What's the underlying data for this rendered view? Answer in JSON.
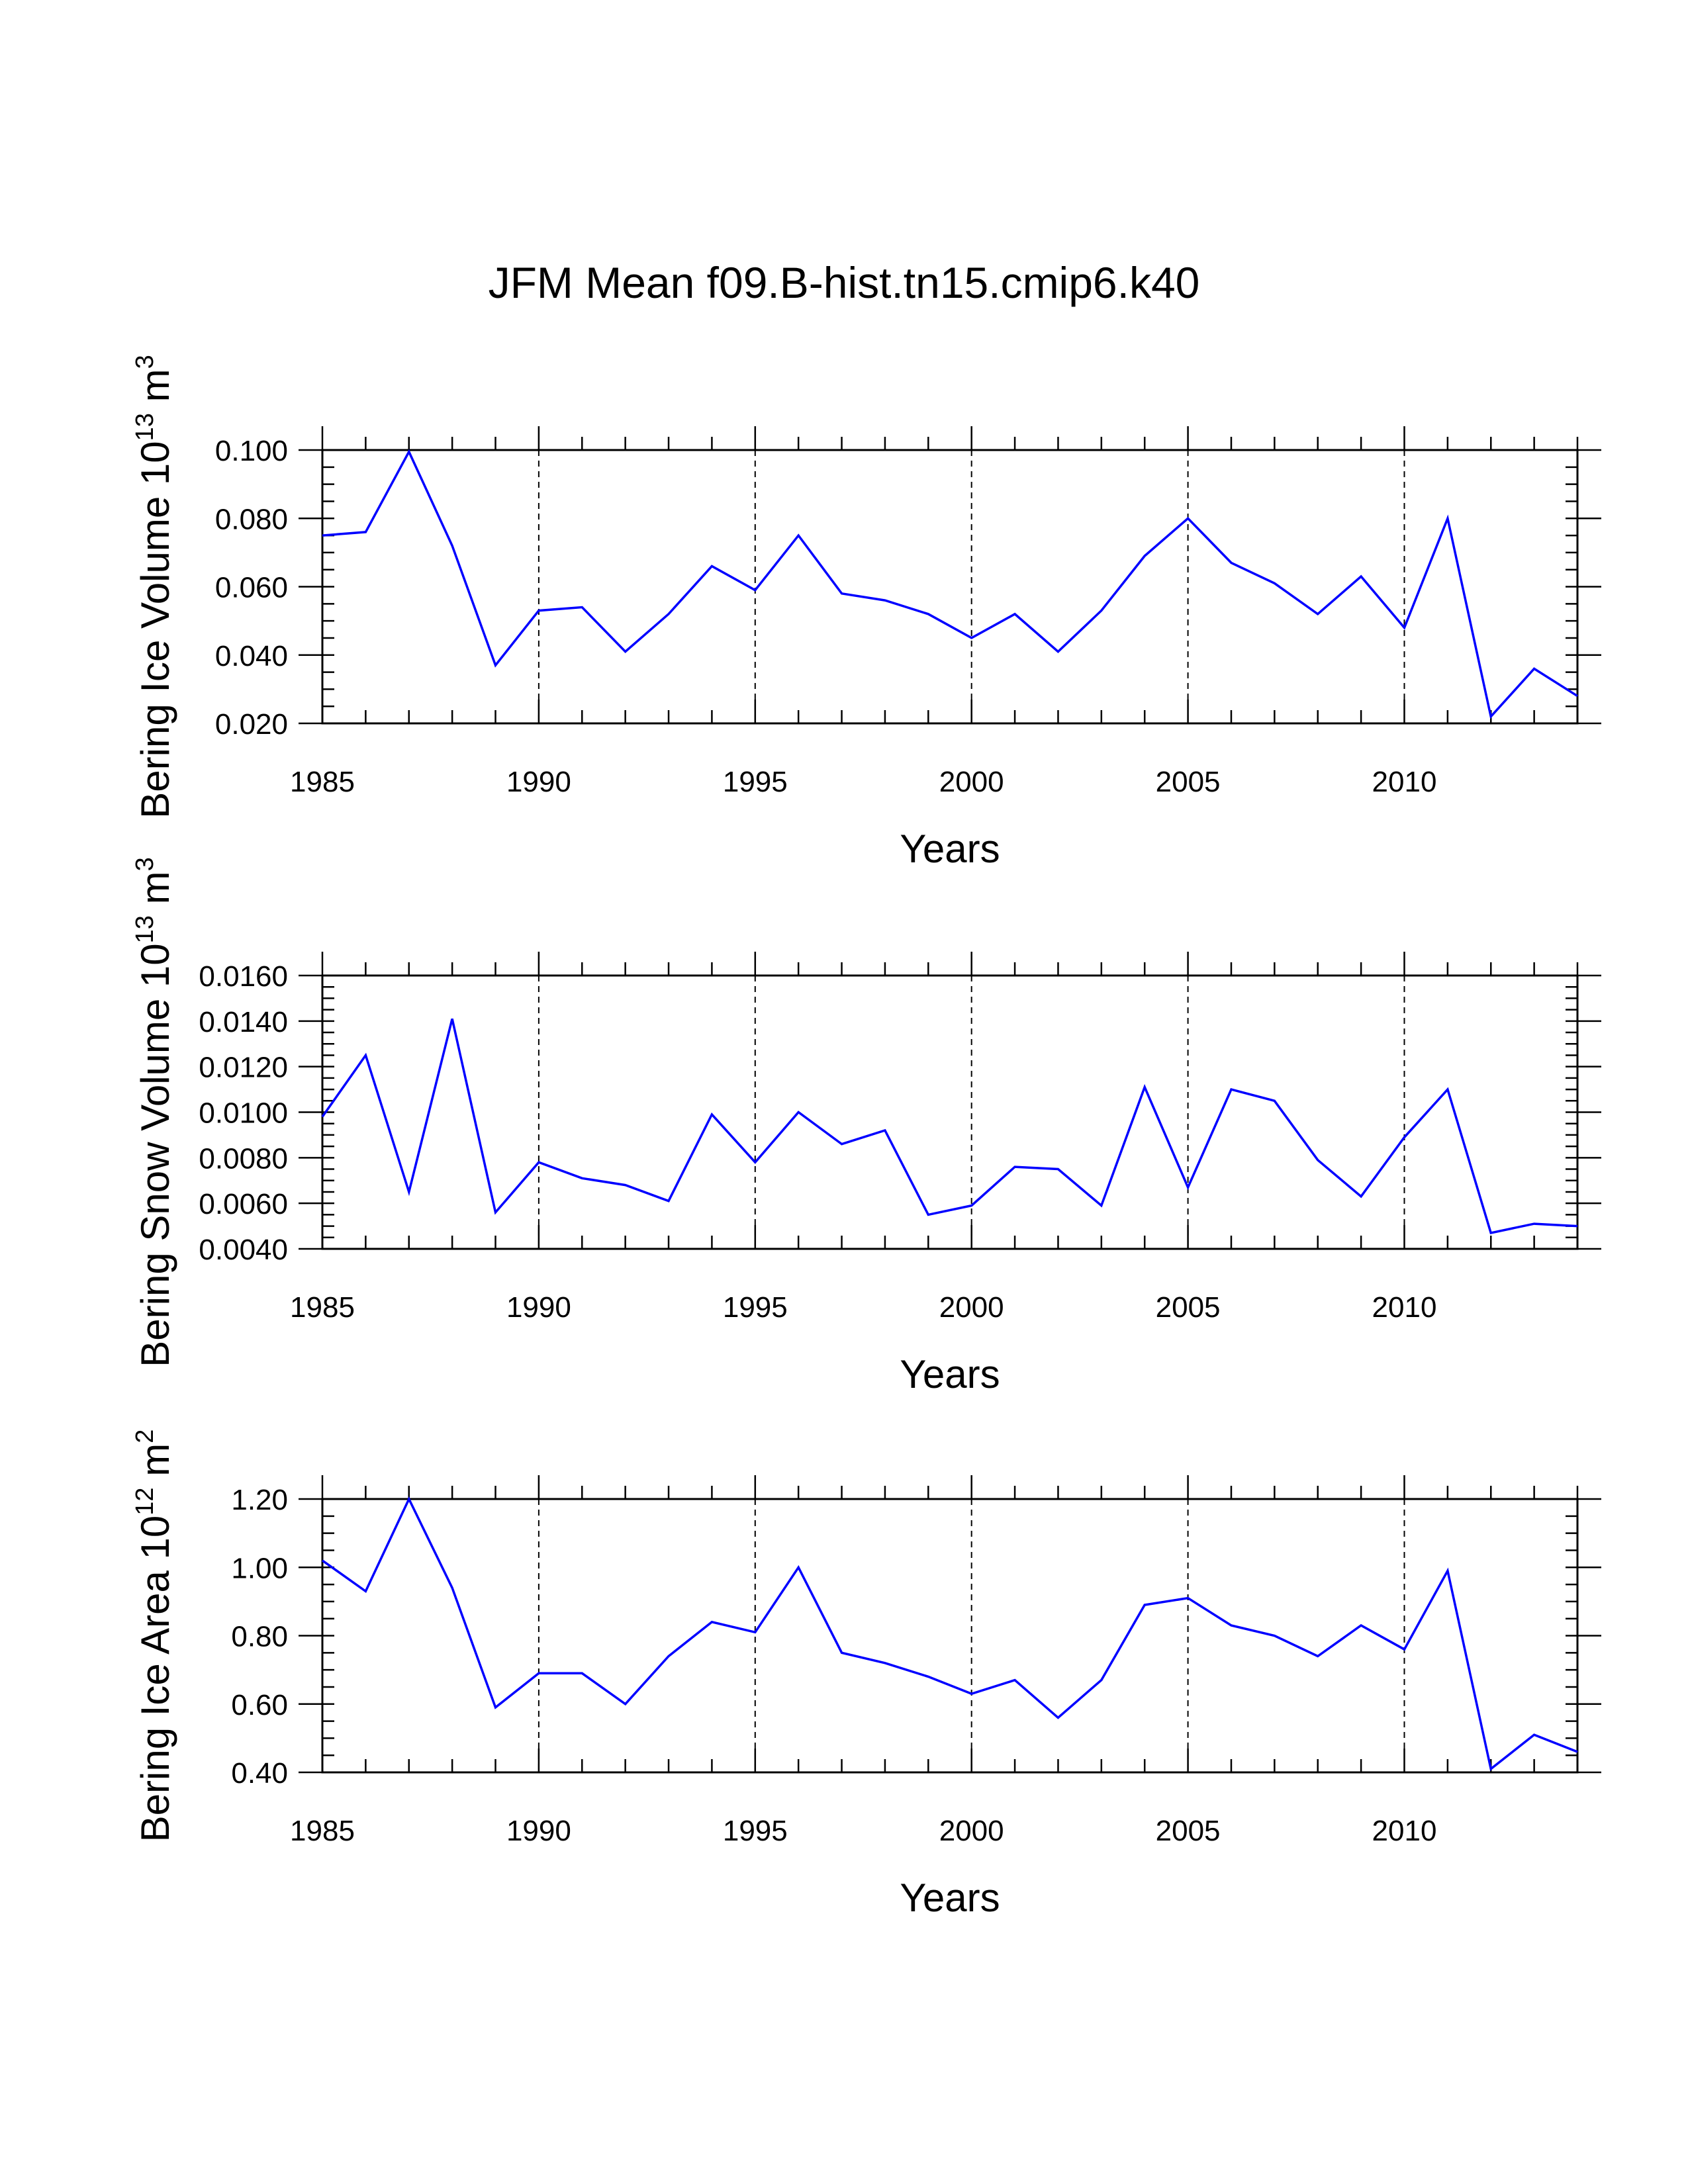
{
  "title": "JFM Mean f09.B-hist.tn15.cmip6.k40",
  "line_color": "#0000ff",
  "chart_data": [
    {
      "type": "line",
      "name": "Bering Ice Volume",
      "ylabel_main": "Bering Ice Volume 10",
      "ylabel_exp": "13",
      "ylabel_unit": "m",
      "ylabel_unit_exp": "3",
      "xlabel": "Years",
      "xlim": [
        1985,
        2014
      ],
      "ylim": [
        0.02,
        0.1
      ],
      "xticks": [
        1985,
        1990,
        1995,
        2000,
        2005,
        2010
      ],
      "xtick_labels": [
        "1985",
        "1990",
        "1995",
        "2000",
        "2005",
        "2010"
      ],
      "yticks": [
        0.02,
        0.04,
        0.06,
        0.08,
        0.1
      ],
      "ytick_labels": [
        "0.020",
        "0.040",
        "0.060",
        "0.080",
        "0.100"
      ],
      "yminor_step": 0.005,
      "gridlines_x": [
        1990,
        1995,
        2000,
        2005,
        2010
      ],
      "x": [
        1985,
        1986,
        1987,
        1988,
        1989,
        1990,
        1991,
        1992,
        1993,
        1994,
        1995,
        1996,
        1997,
        1998,
        1999,
        2000,
        2001,
        2002,
        2003,
        2004,
        2005,
        2006,
        2007,
        2008,
        2009,
        2010,
        2011,
        2012,
        2013,
        2014
      ],
      "values": [
        0.075,
        0.076,
        0.0995,
        0.072,
        0.037,
        0.053,
        0.054,
        0.041,
        0.052,
        0.066,
        0.059,
        0.075,
        0.058,
        0.056,
        0.052,
        0.045,
        0.052,
        0.041,
        0.053,
        0.069,
        0.08,
        0.067,
        0.061,
        0.052,
        0.063,
        0.048,
        0.08,
        0.022,
        0.036,
        0.028
      ]
    },
    {
      "type": "line",
      "name": "Bering Snow Volume",
      "ylabel_main": "Bering Snow Volume 10",
      "ylabel_exp": "13",
      "ylabel_unit": "m",
      "ylabel_unit_exp": "3",
      "xlabel": "Years",
      "xlim": [
        1985,
        2014
      ],
      "ylim": [
        0.004,
        0.016
      ],
      "xticks": [
        1985,
        1990,
        1995,
        2000,
        2005,
        2010
      ],
      "xtick_labels": [
        "1985",
        "1990",
        "1995",
        "2000",
        "2005",
        "2010"
      ],
      "yticks": [
        0.004,
        0.006,
        0.008,
        0.01,
        0.012,
        0.014,
        0.016
      ],
      "ytick_labels": [
        "0.0040",
        "0.0060",
        "0.0080",
        "0.0100",
        "0.0120",
        "0.0140",
        "0.0160"
      ],
      "yminor_step": 0.0005,
      "gridlines_x": [
        1990,
        1995,
        2000,
        2005,
        2010
      ],
      "x": [
        1985,
        1986,
        1987,
        1988,
        1989,
        1990,
        1991,
        1992,
        1993,
        1994,
        1995,
        1996,
        1997,
        1998,
        1999,
        2000,
        2001,
        2002,
        2003,
        2004,
        2005,
        2006,
        2007,
        2008,
        2009,
        2010,
        2011,
        2012,
        2013,
        2014
      ],
      "values": [
        0.0098,
        0.0125,
        0.0065,
        0.0141,
        0.0056,
        0.0078,
        0.0071,
        0.0068,
        0.0061,
        0.0099,
        0.0078,
        0.01,
        0.0086,
        0.0092,
        0.0055,
        0.0059,
        0.0076,
        0.0075,
        0.0059,
        0.0111,
        0.0067,
        0.011,
        0.0105,
        0.0079,
        0.0063,
        0.0089,
        0.011,
        0.0047,
        0.0051,
        0.005
      ]
    },
    {
      "type": "line",
      "name": "Bering Ice Area",
      "ylabel_main": "Bering Ice Area 10",
      "ylabel_exp": "12",
      "ylabel_unit": "m",
      "ylabel_unit_exp": "2",
      "xlabel": "Years",
      "xlim": [
        1985,
        2014
      ],
      "ylim": [
        0.4,
        1.2
      ],
      "xticks": [
        1985,
        1990,
        1995,
        2000,
        2005,
        2010
      ],
      "xtick_labels": [
        "1985",
        "1990",
        "1995",
        "2000",
        "2005",
        "2010"
      ],
      "yticks": [
        0.4,
        0.6,
        0.8,
        1.0,
        1.2
      ],
      "ytick_labels": [
        "0.40",
        "0.60",
        "0.80",
        "1.00",
        "1.20"
      ],
      "yminor_step": 0.05,
      "gridlines_x": [
        1990,
        1995,
        2000,
        2005,
        2010
      ],
      "x": [
        1985,
        1986,
        1987,
        1988,
        1989,
        1990,
        1991,
        1992,
        1993,
        1994,
        1995,
        1996,
        1997,
        1998,
        1999,
        2000,
        2001,
        2002,
        2003,
        2004,
        2005,
        2006,
        2007,
        2008,
        2009,
        2010,
        2011,
        2012,
        2013,
        2014
      ],
      "values": [
        1.02,
        0.93,
        1.2,
        0.94,
        0.59,
        0.69,
        0.69,
        0.6,
        0.74,
        0.84,
        0.81,
        1.0,
        0.75,
        0.72,
        0.68,
        0.63,
        0.67,
        0.56,
        0.67,
        0.89,
        0.91,
        0.83,
        0.8,
        0.74,
        0.83,
        0.76,
        0.99,
        0.41,
        0.51,
        0.46
      ]
    }
  ]
}
